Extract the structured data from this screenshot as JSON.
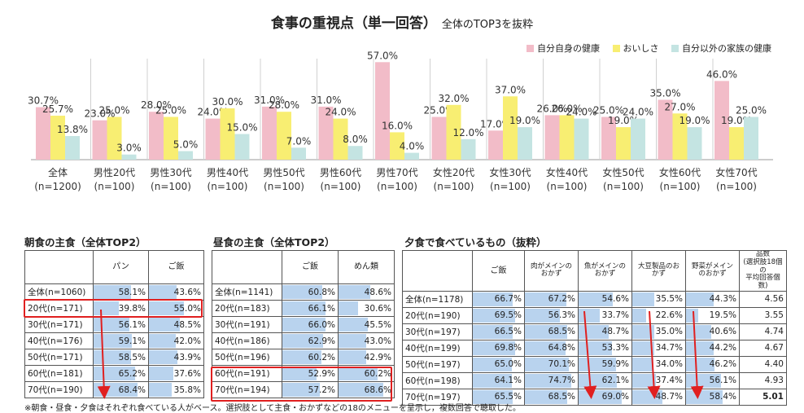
{
  "title": {
    "main": "食事の重視点（単一回答）",
    "sub": "全体のTOP3を抜粋"
  },
  "chart_data": {
    "type": "bar",
    "title": "食事の重視点（単一回答） 全体のTOP3を抜粋",
    "categories": [
      {
        "l1": "全体",
        "l2": "(n=1200)"
      },
      {
        "l1": "男性20代",
        "l2": "(n=100)"
      },
      {
        "l1": "男性30代",
        "l2": "(n=100)"
      },
      {
        "l1": "男性40代",
        "l2": "(n=100)"
      },
      {
        "l1": "男性50代",
        "l2": "(n=100)"
      },
      {
        "l1": "男性60代",
        "l2": "(n=100)"
      },
      {
        "l1": "男性70代",
        "l2": "(n=100)"
      },
      {
        "l1": "女性20代",
        "l2": "(n=100)"
      },
      {
        "l1": "女性30代",
        "l2": "(n=100)"
      },
      {
        "l1": "女性40代",
        "l2": "(n=100)"
      },
      {
        "l1": "女性50代",
        "l2": "(n=100)"
      },
      {
        "l1": "女性60代",
        "l2": "(n=100)"
      },
      {
        "l1": "女性70代",
        "l2": "(n=100)"
      }
    ],
    "series": [
      {
        "name": "自分自身の健康",
        "color": "#f2bcc8",
        "values": [
          30.7,
          23.0,
          28.0,
          24.0,
          31.0,
          31.0,
          57.0,
          25.0,
          17.0,
          26.0,
          25.0,
          35.0,
          46.0
        ]
      },
      {
        "name": "おいしさ",
        "color": "#f8ee72",
        "values": [
          25.7,
          25.0,
          25.0,
          30.0,
          28.0,
          24.0,
          16.0,
          32.0,
          37.0,
          26.0,
          19.0,
          27.0,
          19.0
        ]
      },
      {
        "name": "自分以外の家族の健康",
        "color": "#c4e4e2",
        "values": [
          13.8,
          3.0,
          5.0,
          15.0,
          7.0,
          8.0,
          4.0,
          12.0,
          19.0,
          24.0,
          24.0,
          19.0,
          25.0
        ]
      }
    ],
    "ylim": [
      0,
      60
    ],
    "legend": "top-right",
    "grid": false
  },
  "breakfast": {
    "title": "朝食の主食（全体TOP2）",
    "columns": [
      "パン",
      "ご飯"
    ],
    "rows": [
      {
        "label": "全体(n=1060)",
        "values": [
          "58.1%",
          "43.6%"
        ]
      },
      {
        "label": "20代(n=171)",
        "values": [
          "39.8%",
          "55.0%"
        ]
      },
      {
        "label": "30代(n=171)",
        "values": [
          "56.1%",
          "48.5%"
        ]
      },
      {
        "label": "40代(n=176)",
        "values": [
          "59.1%",
          "42.0%"
        ]
      },
      {
        "label": "50代(n=171)",
        "values": [
          "58.5%",
          "43.9%"
        ]
      },
      {
        "label": "60代(n=181)",
        "values": [
          "65.2%",
          "37.6%"
        ]
      },
      {
        "label": "70代(n=190)",
        "values": [
          "68.4%",
          "35.8%"
        ]
      }
    ]
  },
  "lunch": {
    "title": "昼食の主食（全体TOP2）",
    "columns": [
      "ご飯",
      "めん類"
    ],
    "rows": [
      {
        "label": "全体(n=1141)",
        "values": [
          "60.8%",
          "48.6%"
        ]
      },
      {
        "label": "20代(n=183)",
        "values": [
          "66.1%",
          "30.6%"
        ]
      },
      {
        "label": "30代(n=191)",
        "values": [
          "66.0%",
          "45.5%"
        ]
      },
      {
        "label": "40代(n=186)",
        "values": [
          "62.9%",
          "43.0%"
        ]
      },
      {
        "label": "50代(n=196)",
        "values": [
          "60.2%",
          "42.9%"
        ]
      },
      {
        "label": "60代(n=191)",
        "values": [
          "52.9%",
          "60.2%"
        ]
      },
      {
        "label": "70代(n=194)",
        "values": [
          "57.2%",
          "68.6%"
        ]
      }
    ]
  },
  "dinner": {
    "title": "夕食で食べているもの（抜粋）",
    "columns": [
      "ご飯",
      "肉がメインの\nおかず",
      "魚がメインの\nおかず",
      "大豆製品のお\nかず",
      "野菜がメイン\nのおかず",
      "品数\n(選択肢18個の\n平均回答個数)"
    ],
    "rows": [
      {
        "label": "全体(n=1178)",
        "values": [
          "66.7%",
          "67.2%",
          "54.6%",
          "35.5%",
          "44.3%",
          "4.56"
        ]
      },
      {
        "label": "20代(n=190)",
        "values": [
          "69.5%",
          "56.3%",
          "33.7%",
          "22.6%",
          "19.5%",
          "3.55"
        ]
      },
      {
        "label": "30代(n=197)",
        "values": [
          "66.5%",
          "68.5%",
          "48.7%",
          "35.0%",
          "40.6%",
          "4.74"
        ]
      },
      {
        "label": "40代(n=199)",
        "values": [
          "69.8%",
          "64.8%",
          "53.3%",
          "34.7%",
          "44.2%",
          "4.67"
        ]
      },
      {
        "label": "50代(n=197)",
        "values": [
          "65.0%",
          "70.1%",
          "59.9%",
          "34.0%",
          "46.2%",
          "4.40"
        ]
      },
      {
        "label": "60代(n=198)",
        "values": [
          "64.1%",
          "74.7%",
          "62.1%",
          "37.4%",
          "56.1%",
          "4.93"
        ]
      },
      {
        "label": "70代(n=197)",
        "values": [
          "65.5%",
          "68.5%",
          "69.0%",
          "48.7%",
          "58.4%",
          "5.01"
        ]
      }
    ]
  },
  "footnote": "※朝食・昼食・夕食はそれぞれ食べている人がベース。選択肢として主食・おかずなどの18のメニューを呈示し，複数回答で聴取した。"
}
